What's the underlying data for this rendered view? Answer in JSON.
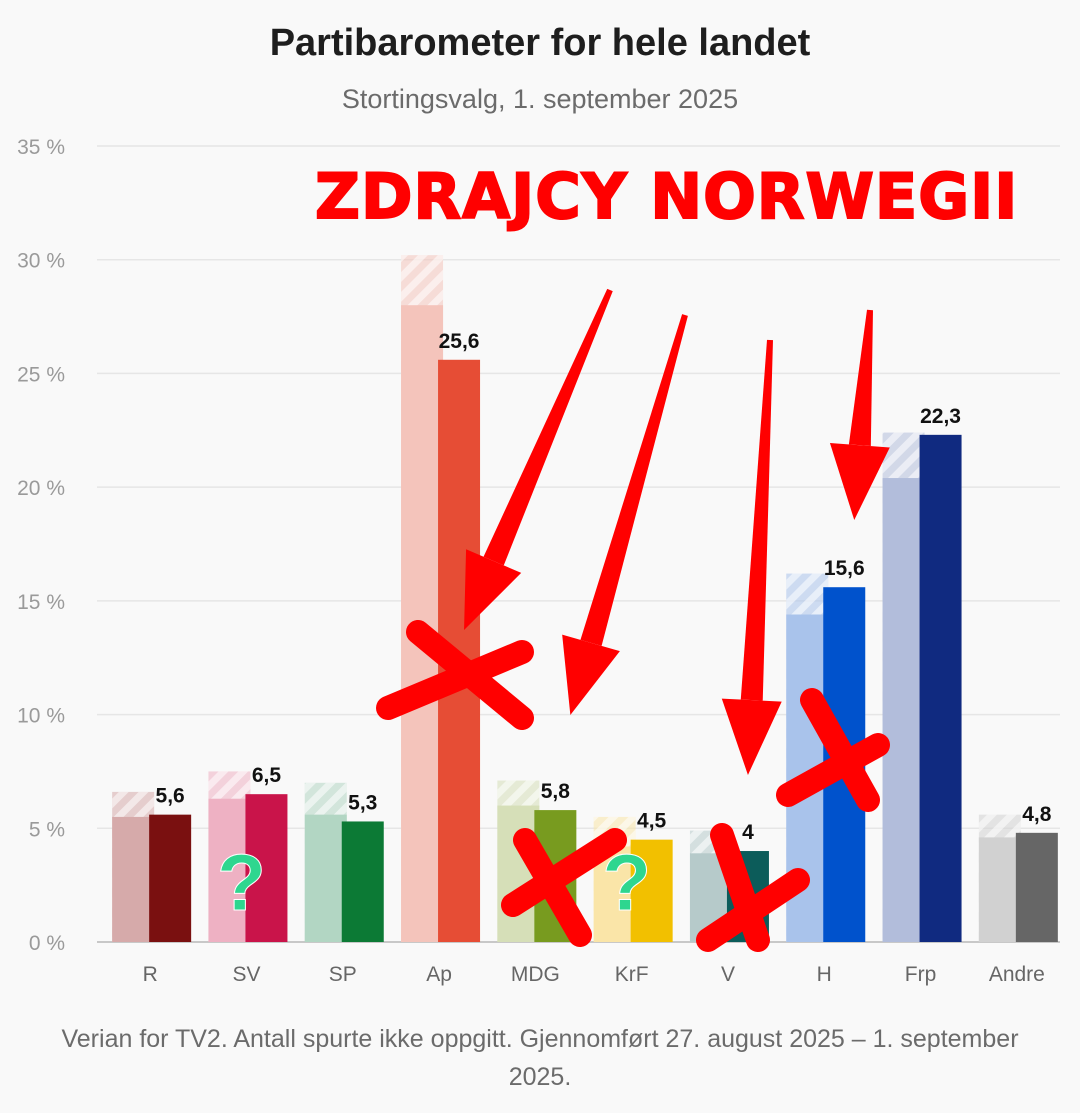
{
  "overlay": {
    "text": "ZDRAJCY NORWEGII",
    "color": "#ff0000",
    "question_color": "#2ed68f",
    "question_mark": "?",
    "crossed_out": [
      "Ap",
      "MDG",
      "V",
      "H"
    ],
    "question_marked": [
      "SV",
      "KrF"
    ],
    "arrow_targets": [
      "Ap",
      "MDG",
      "V",
      "H"
    ]
  },
  "chart_data": {
    "type": "bar",
    "title": "Partibarometer for hele landet",
    "subtitle": "Stortingsvalg, 1. september 2025",
    "source": "Verian for TV2. Antall spurte ikke oppgitt. Gjennomført 27. august 2025 – 1. september 2025.",
    "categories": [
      "R",
      "SV",
      "SP",
      "Ap",
      "MDG",
      "KrF",
      "V",
      "H",
      "Frp",
      "Andre"
    ],
    "value_labels": [
      "5,6",
      "6,5",
      "5,3",
      "25,6",
      "5,8",
      "4,5",
      "4",
      "15,6",
      "22,3",
      "4,8"
    ],
    "series": [
      {
        "values": [
          5.6,
          6.5,
          5.3,
          25.6,
          5.8,
          4.5,
          4.0,
          15.6,
          22.3,
          4.8
        ]
      }
    ],
    "previous_values": [
      5.5,
      6.3,
      5.6,
      28.0,
      6.0,
      4.2,
      3.9,
      14.4,
      20.4,
      4.6
    ],
    "uncertainty_upper": [
      6.6,
      7.5,
      7.0,
      30.2,
      7.1,
      5.5,
      4.9,
      16.2,
      22.4,
      5.6
    ],
    "colors": [
      "#7a1010",
      "#c9144a",
      "#0c7a35",
      "#e64d35",
      "#789b1f",
      "#f2c000",
      "#0c5c5a",
      "#0052cc",
      "#102a80",
      "#666666"
    ],
    "faded_colors": [
      "#d6aaaa",
      "#eeb1c3",
      "#b2d6c3",
      "#f4c4bb",
      "#d6dfb8",
      "#fae5a8",
      "#b6caca",
      "#a9c3eb",
      "#b2bddb",
      "#d1d1d1"
    ],
    "y_ticks": [
      "0 %",
      "5 %",
      "10 %",
      "15 %",
      "20 %",
      "25 %",
      "30 %",
      "35 %"
    ],
    "ylim": [
      0,
      35
    ],
    "grid": true
  }
}
